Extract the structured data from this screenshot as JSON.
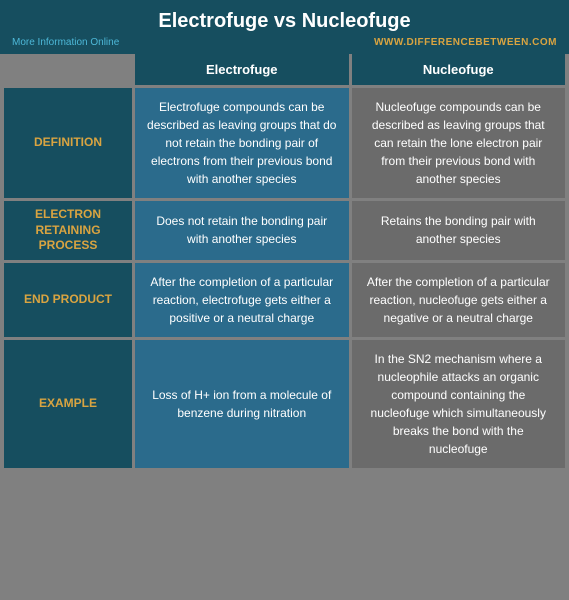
{
  "header": {
    "title": "Electrofuge vs Nucleofuge",
    "more_info": "More Information Online",
    "site_url": "WWW.DIFFERENCEBETWEEN.COM"
  },
  "columns": {
    "col1": "Electrofuge",
    "col2": "Nucleofuge"
  },
  "rows": [
    {
      "label": "DEFINITION",
      "left": "Electrofuge compounds can be described as leaving groups that do not retain the bonding pair of electrons from their previous bond with another species",
      "right": "Nucleofuge compounds can be described as leaving groups that can retain the lone electron pair from their previous bond with another species"
    },
    {
      "label": "ELECTRON RETAINING PROCESS",
      "left": "Does not retain the bonding pair with another species",
      "right": "Retains the bonding pair with another species"
    },
    {
      "label": "END PRODUCT",
      "left": "After the completion of a particular reaction, electrofuge gets either a positive or a neutral charge",
      "right": "After the completion of a particular reaction, nucleofuge gets either a negative or a neutral charge"
    },
    {
      "label": "EXAMPLE",
      "left": "Loss of H+ ion from a molecule of benzene during nitration",
      "right": "In the SN2 mechanism where a nucleophile attacks an organic compound containing the nucleofuge which simultaneously breaks the bond with the nucleofuge"
    }
  ],
  "colors": {
    "dark_teal": "#164e5f",
    "blue_cell": "#2b6b8c",
    "gray_cell": "#6b6b6b",
    "page_bg": "#808080",
    "accent_yellow": "#d9a441",
    "accent_cyan": "#4db8d8"
  }
}
